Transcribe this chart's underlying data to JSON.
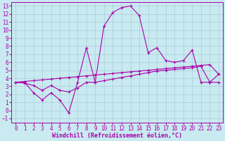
{
  "background_color": "#c8eaf0",
  "grid_color": "#aaccda",
  "line_color": "#aa00aa",
  "xlabel": "Windchill (Refroidissement éolien,°C)",
  "xlabel_fontsize": 6.0,
  "tick_fontsize": 5.5,
  "xlim": [
    -0.5,
    23.5
  ],
  "ylim": [
    -1.5,
    13.5
  ],
  "xticks": [
    0,
    1,
    2,
    3,
    4,
    5,
    6,
    7,
    8,
    9,
    10,
    11,
    12,
    13,
    14,
    15,
    16,
    17,
    18,
    19,
    20,
    21,
    22,
    23
  ],
  "yticks": [
    -1,
    0,
    1,
    2,
    3,
    4,
    5,
    6,
    7,
    8,
    9,
    10,
    11,
    12,
    13
  ],
  "line1_x": [
    0,
    1,
    2,
    3,
    4,
    5,
    6,
    7,
    8,
    9,
    10,
    11,
    12,
    13,
    14,
    15,
    16,
    17,
    18,
    19,
    20,
    21,
    22,
    23
  ],
  "line1_y": [
    3.5,
    3.5,
    2.2,
    1.3,
    2.2,
    1.3,
    -0.3,
    3.5,
    7.8,
    3.5,
    10.5,
    12.2,
    12.8,
    13.0,
    11.8,
    7.2,
    7.8,
    6.2,
    6.0,
    6.2,
    7.5,
    3.5,
    3.5,
    4.5
  ],
  "line2_x": [
    0,
    1,
    2,
    3,
    4,
    5,
    6,
    7,
    8,
    9,
    10,
    11,
    12,
    13,
    14,
    15,
    16,
    17,
    18,
    19,
    20,
    21,
    22,
    23
  ],
  "line2_y": [
    3.5,
    3.6,
    3.7,
    3.8,
    3.9,
    4.0,
    4.1,
    4.2,
    4.3,
    4.4,
    4.5,
    4.6,
    4.7,
    4.8,
    4.9,
    5.0,
    5.1,
    5.2,
    5.3,
    5.4,
    5.5,
    5.6,
    5.7,
    4.5
  ],
  "line3_x": [
    0,
    1,
    2,
    3,
    4,
    5,
    6,
    7,
    8,
    9,
    10,
    11,
    12,
    13,
    14,
    15,
    16,
    17,
    18,
    19,
    20,
    21,
    22,
    23
  ],
  "line3_y": [
    3.5,
    3.4,
    3.1,
    2.5,
    3.1,
    2.5,
    2.3,
    2.8,
    3.5,
    3.5,
    3.7,
    3.9,
    4.1,
    4.3,
    4.5,
    4.7,
    4.9,
    5.0,
    5.1,
    5.2,
    5.3,
    5.5,
    3.5,
    3.5
  ]
}
